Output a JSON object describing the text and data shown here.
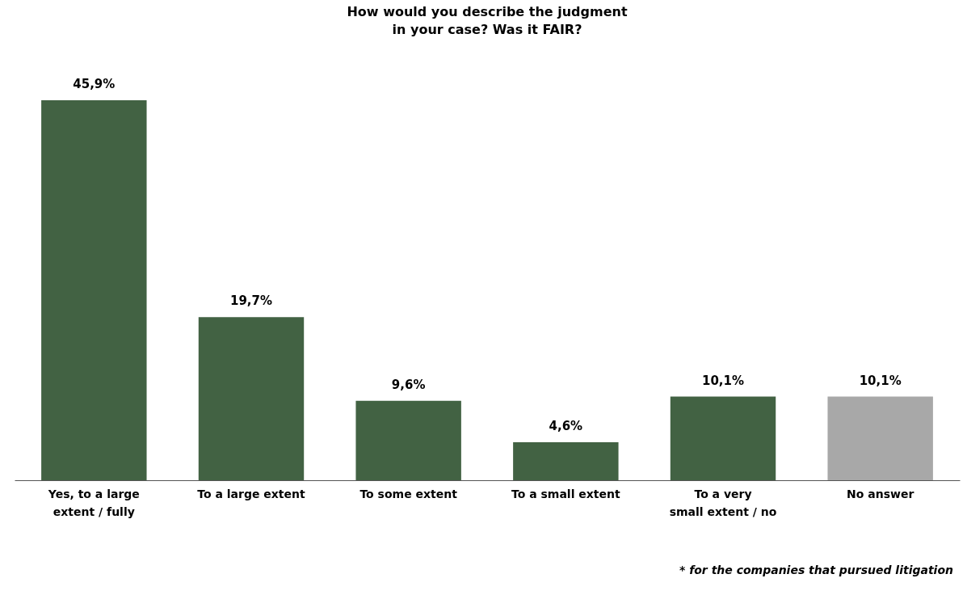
{
  "chart_data": {
    "type": "bar",
    "title": "How would you describe the judgment\nin your case? Was it FAIR?",
    "categories": [
      "Yes, to a large\nextent / fully",
      "To a large extent",
      "To some extent",
      "To a small extent",
      "To a very\nsmall extent / no",
      "No answer"
    ],
    "values": [
      45.9,
      19.7,
      9.6,
      4.6,
      10.1,
      10.1
    ],
    "value_labels": [
      "45,9%",
      "19,7%",
      "9,6%",
      "4,6%",
      "10,1%",
      "10,1%"
    ],
    "colors": [
      "#426243",
      "#426243",
      "#426243",
      "#426243",
      "#426243",
      "#a8a8a8"
    ],
    "annotations": [
      "* for the companies that pursued litigation"
    ]
  }
}
